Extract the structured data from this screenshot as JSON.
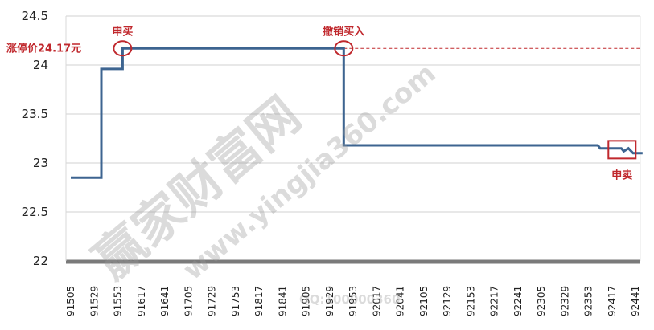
{
  "chart_data": {
    "type": "line",
    "title": "",
    "xlabel": "",
    "ylabel": "",
    "ylim": [
      22,
      24.5
    ],
    "yticks": [
      "24.5",
      "24",
      "23.5",
      "23",
      "22.5",
      "22"
    ],
    "categories": [
      "91505",
      "91529",
      "91553",
      "91617",
      "91641",
      "91705",
      "91729",
      "91753",
      "91817",
      "91841",
      "91905",
      "91929",
      "91953",
      "92017",
      "92041",
      "92105",
      "92129",
      "92153",
      "92217",
      "92241",
      "92305",
      "92329",
      "92353",
      "92417",
      "92441"
    ],
    "grid": true,
    "series": [
      {
        "step": true,
        "color": "#3d6490",
        "points": [
          [
            0,
            22.85
          ],
          [
            1.3,
            22.85
          ],
          [
            1.3,
            23.96
          ],
          [
            2.2,
            23.96
          ],
          [
            2.2,
            24.17
          ],
          [
            11.6,
            24.17
          ],
          [
            11.6,
            23.18
          ],
          [
            22.4,
            23.18
          ],
          [
            22.5,
            23.15
          ],
          [
            23.4,
            23.15
          ],
          [
            23.5,
            23.12
          ],
          [
            23.7,
            23.15
          ],
          [
            23.9,
            23.1
          ],
          [
            24.3,
            23.1
          ]
        ]
      }
    ],
    "limit_line": {
      "value": 24.17,
      "label": "涨停价24.17元",
      "color": "#c0282d"
    },
    "annotations": [
      {
        "text": "申买",
        "x": 2.2,
        "y": 24.17
      },
      {
        "text": "撤销买入",
        "x": 11.6,
        "y": 24.17
      },
      {
        "text": "申卖",
        "x": 23.6,
        "y": 23.12
      }
    ],
    "accent_color": "#c0282d"
  },
  "watermark": {
    "brand": "赢家财富网",
    "url": "www.yingjia360.com",
    "qq": "QQ:100000360"
  }
}
